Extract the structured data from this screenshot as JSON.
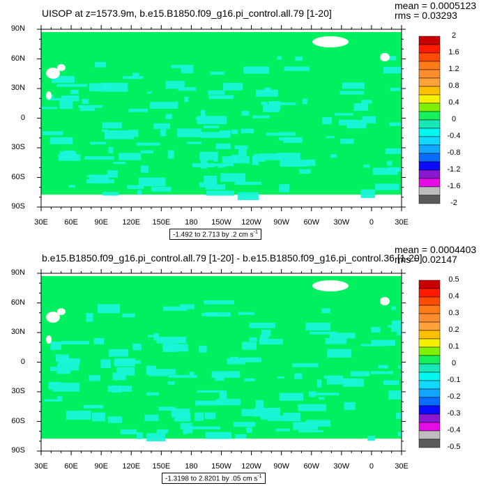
{
  "colors": {
    "ocean_fill": "#00f060",
    "near_zero": "#18f4d8",
    "land": "#ffffff",
    "frame": "#000000",
    "colorbar": [
      "#5a5a5a",
      "#bdbdbd",
      "#e50ce5",
      "#8b18d0",
      "#0b0bff",
      "#0a6cff",
      "#12a6ff",
      "#13d8ff",
      "#00f8f0",
      "#18e7b8",
      "#16f05a",
      "#7ef000",
      "#f5f000",
      "#ffc000",
      "#ffa23a",
      "#ff8d30",
      "#ff7a18",
      "#ff4c00",
      "#ff1a00",
      "#c80000"
    ]
  },
  "lat_labels": [
    "90N",
    "60N",
    "30N",
    "0",
    "30S",
    "60S",
    "90S"
  ],
  "lon_labels": [
    "30E",
    "60E",
    "90E",
    "120E",
    "150E",
    "180",
    "150W",
    "120W",
    "90W",
    "60W",
    "30W",
    "0",
    "30E"
  ],
  "panels": [
    {
      "title": "UISOP at z=1573.9m, b.e15.B1850.f09_g16.pi_control.all.79 [1-20]",
      "mean": "mean = 0.0005123",
      "rms": "rms = 0.03293",
      "range": "-1.492 to 2.713 by .2 cm s",
      "range_sup": "-1",
      "colorbar_labels": [
        "2",
        "1.6",
        "1.2",
        "0.8",
        "0.4",
        "0",
        "-0.4",
        "-0.8",
        "-1.2",
        "-1.6",
        "-2"
      ]
    },
    {
      "title": "b.e15.B1850.f09_g16.pi_control.all.79 [1-20] - b.e15.B1850.f09_g16.pi_control.36 [1-20]",
      "mean": "mean = 0.0004403",
      "rms": "rms = 0.02147",
      "range": "-1.3198 to 2.8201 by .05 cm s",
      "range_sup": "-1",
      "colorbar_labels": [
        "0.5",
        "0.4",
        "0.3",
        "0.2",
        "0.1",
        "0",
        "-0.1",
        "-0.2",
        "-0.3",
        "-0.4",
        "-0.5"
      ]
    }
  ]
}
